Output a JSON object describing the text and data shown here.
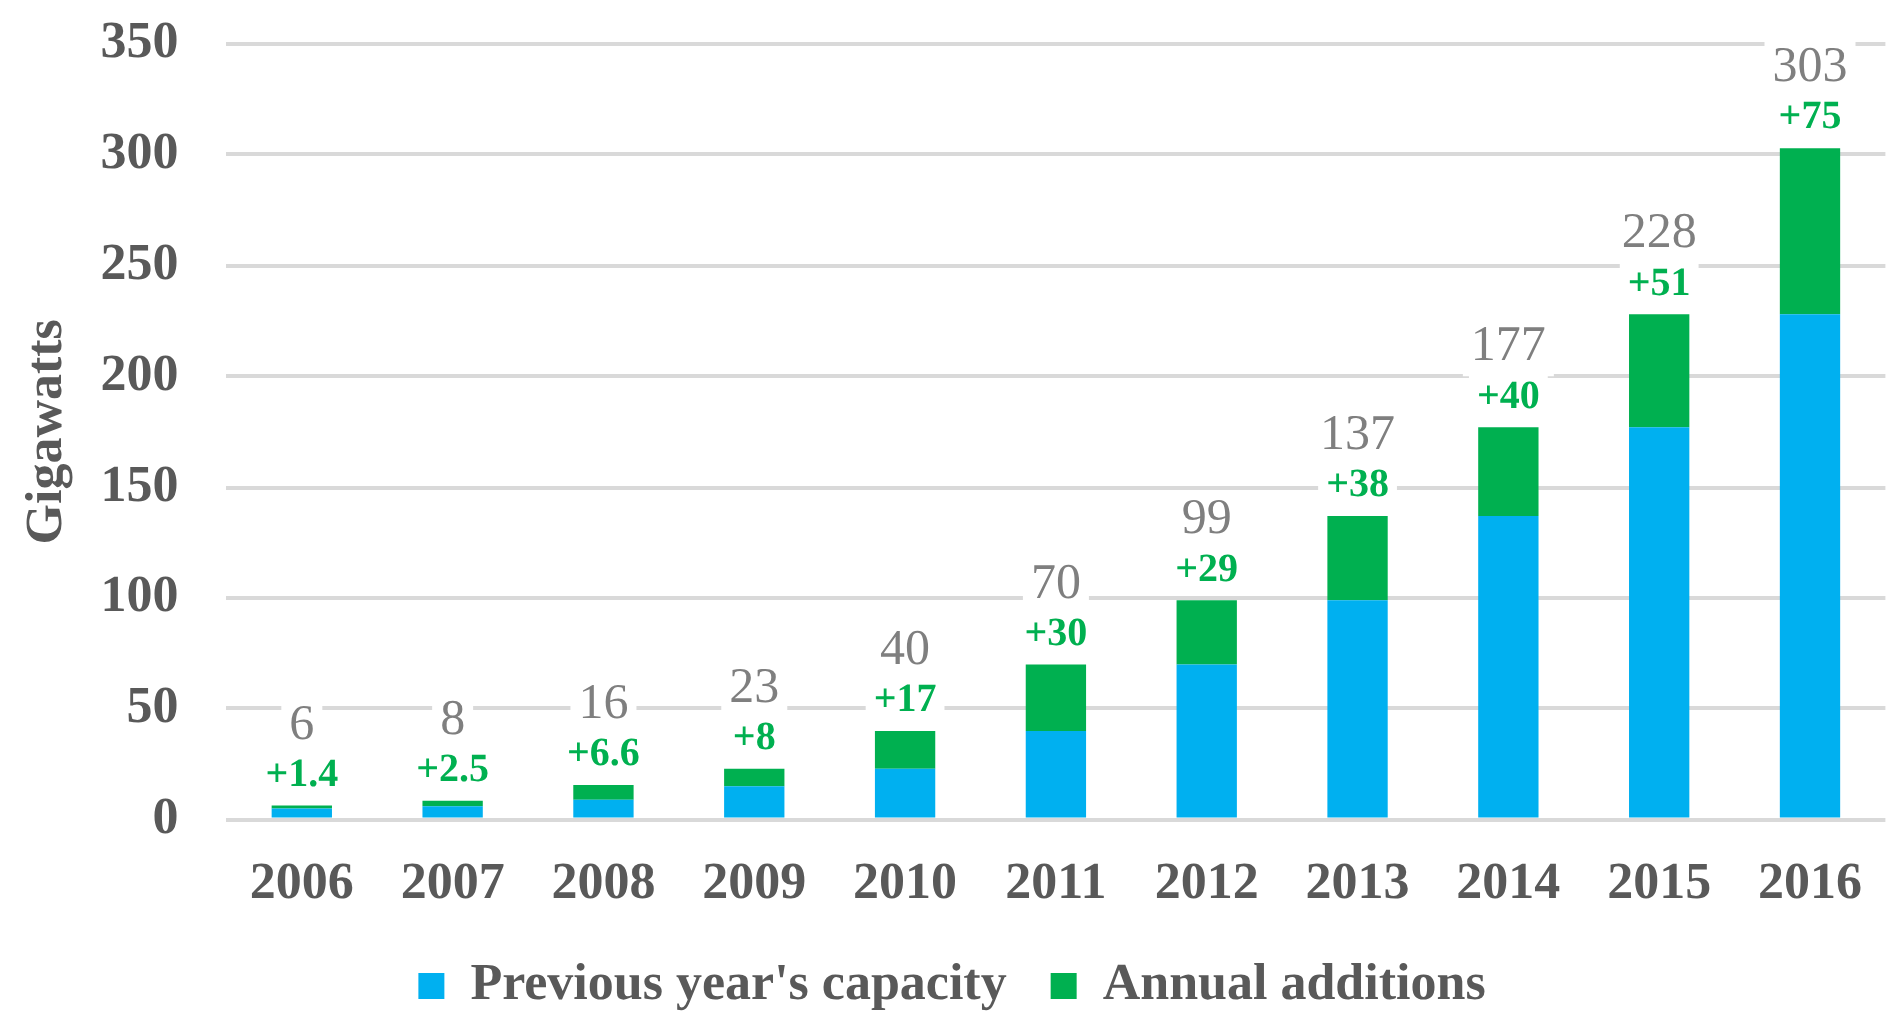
{
  "chart_data": {
    "type": "bar",
    "stacked": true,
    "ylabel": "Gigawatts",
    "categories": [
      "2006",
      "2007",
      "2008",
      "2009",
      "2010",
      "2011",
      "2012",
      "2013",
      "2014",
      "2015",
      "2016"
    ],
    "series": [
      {
        "name": "Previous year's capacity",
        "color": "#00b0f0",
        "values": [
          5,
          6,
          9,
          15,
          23,
          40,
          70,
          99,
          137,
          177,
          228
        ]
      },
      {
        "name": "Annual additions",
        "color": "#00b050",
        "values": [
          1.4,
          2.5,
          6.6,
          8,
          17,
          30,
          29,
          38,
          40,
          51,
          75
        ],
        "value_labels": [
          "+1.4",
          "+2.5",
          "+6.6",
          "+8",
          "+17",
          "+30",
          "+29",
          "+38",
          "+40",
          "+51",
          "+75"
        ]
      }
    ],
    "totals": [
      "6",
      "8",
      "16",
      "23",
      "40",
      "70",
      "99",
      "137",
      "177",
      "228",
      "303"
    ],
    "ylim": [
      0,
      350
    ],
    "yticks": [
      0,
      50,
      100,
      150,
      200,
      250,
      300,
      350
    ],
    "grid": "y",
    "legend": "bottom"
  }
}
